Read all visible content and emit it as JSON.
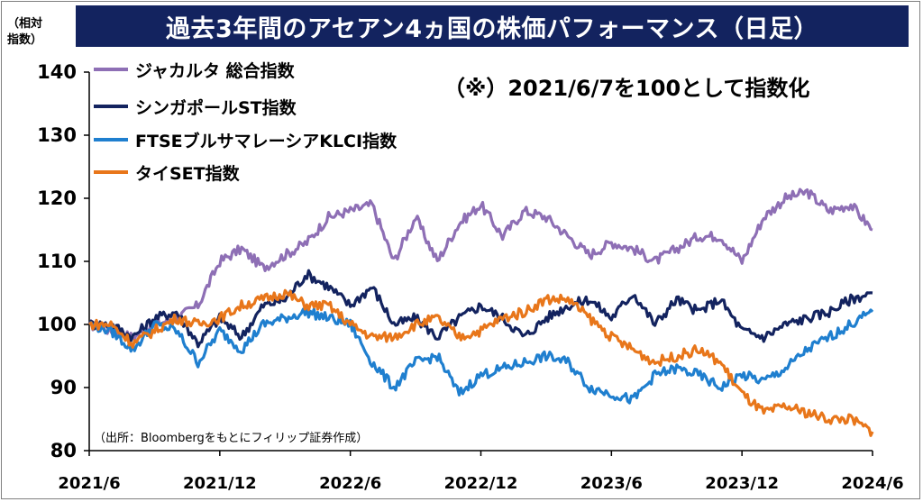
{
  "header": {
    "title": "過去3年間のアセアン4ヵ国の株価パフォーマンス（日足）",
    "unit_line1": "（相対",
    "unit_line2": "指数）",
    "note": "（※）2021/6/7を100として指数化",
    "source": "（出所：Bloombergをもとにフィリップ証券作成）"
  },
  "chart_data": {
    "type": "line",
    "title": "過去3年間のアセアン4ヵ国の株価パフォーマンス（日足）",
    "xlabel": "",
    "ylabel": "（相対指数）",
    "ylim": [
      80,
      140
    ],
    "yticks": [
      "80",
      "90",
      "100",
      "110",
      "120",
      "130",
      "140"
    ],
    "xticks": [
      "2021/6",
      "2021/12",
      "2022/6",
      "2022/12",
      "2023/6",
      "2023/12",
      "2024/6"
    ],
    "xlim": [
      0,
      36
    ],
    "grid": false,
    "legend_position": "top-left",
    "series": [
      {
        "name": "ジャカルタ 総合指数",
        "color": "#8e6fb5",
        "values": [
          [
            0,
            100
          ],
          [
            1,
            99
          ],
          [
            2,
            98
          ],
          [
            3,
            100
          ],
          [
            4,
            101
          ],
          [
            5,
            103
          ],
          [
            6,
            110
          ],
          [
            7,
            112
          ],
          [
            8,
            109
          ],
          [
            9,
            111
          ],
          [
            10,
            113
          ],
          [
            11,
            117
          ],
          [
            12,
            118
          ],
          [
            13,
            119
          ],
          [
            14,
            110
          ],
          [
            15,
            117
          ],
          [
            16,
            110
          ],
          [
            17,
            116
          ],
          [
            18,
            119
          ],
          [
            19,
            114
          ],
          [
            20,
            118
          ],
          [
            21,
            117
          ],
          [
            22,
            114
          ],
          [
            23,
            111
          ],
          [
            24,
            113
          ],
          [
            25,
            112
          ],
          [
            26,
            110
          ],
          [
            27,
            112
          ],
          [
            28,
            114
          ],
          [
            29,
            114
          ],
          [
            30,
            110
          ],
          [
            31,
            117
          ],
          [
            32,
            120
          ],
          [
            33,
            121
          ],
          [
            34,
            118
          ],
          [
            35,
            119
          ],
          [
            36,
            115
          ]
        ]
      },
      {
        "name": "シンガポールST指数",
        "color": "#13235f",
        "values": [
          [
            0,
            100
          ],
          [
            1,
            100
          ],
          [
            2,
            98
          ],
          [
            3,
            101
          ],
          [
            4,
            102
          ],
          [
            5,
            97
          ],
          [
            6,
            101
          ],
          [
            7,
            98
          ],
          [
            8,
            103
          ],
          [
            9,
            104
          ],
          [
            10,
            108
          ],
          [
            11,
            106
          ],
          [
            12,
            103
          ],
          [
            13,
            106
          ],
          [
            14,
            100
          ],
          [
            15,
            101
          ],
          [
            16,
            98
          ],
          [
            17,
            101
          ],
          [
            18,
            103
          ],
          [
            19,
            101
          ],
          [
            20,
            98
          ],
          [
            21,
            101
          ],
          [
            22,
            103
          ],
          [
            23,
            104
          ],
          [
            24,
            101
          ],
          [
            25,
            105
          ],
          [
            26,
            100
          ],
          [
            27,
            104
          ],
          [
            28,
            102
          ],
          [
            29,
            104
          ],
          [
            30,
            99
          ],
          [
            31,
            98
          ],
          [
            32,
            100
          ],
          [
            33,
            101
          ],
          [
            34,
            102
          ],
          [
            35,
            104
          ],
          [
            36,
            105
          ]
        ]
      },
      {
        "name": "FTSEブルサマレーシアKLCI指数",
        "color": "#1f7fcf",
        "values": [
          [
            0,
            100
          ],
          [
            1,
            99
          ],
          [
            2,
            96
          ],
          [
            3,
            100
          ],
          [
            4,
            99
          ],
          [
            5,
            94
          ],
          [
            6,
            99
          ],
          [
            7,
            96
          ],
          [
            8,
            100
          ],
          [
            9,
            101
          ],
          [
            10,
            102
          ],
          [
            11,
            101
          ],
          [
            12,
            100
          ],
          [
            13,
            94
          ],
          [
            14,
            90
          ],
          [
            15,
            94
          ],
          [
            16,
            95
          ],
          [
            17,
            89
          ],
          [
            18,
            92
          ],
          [
            19,
            93
          ],
          [
            20,
            94
          ],
          [
            21,
            95
          ],
          [
            22,
            94
          ],
          [
            23,
            90
          ],
          [
            24,
            89
          ],
          [
            25,
            88
          ],
          [
            26,
            92
          ],
          [
            27,
            93
          ],
          [
            28,
            92
          ],
          [
            29,
            90
          ],
          [
            30,
            92
          ],
          [
            31,
            91
          ],
          [
            32,
            93
          ],
          [
            33,
            96
          ],
          [
            34,
            98
          ],
          [
            35,
            100
          ],
          [
            36,
            102
          ]
        ]
      },
      {
        "name": "タイSET指数",
        "color": "#e8761a",
        "values": [
          [
            0,
            100
          ],
          [
            1,
            100
          ],
          [
            2,
            97
          ],
          [
            3,
            99
          ],
          [
            4,
            101
          ],
          [
            5,
            100
          ],
          [
            6,
            101
          ],
          [
            7,
            103
          ],
          [
            8,
            104
          ],
          [
            9,
            105
          ],
          [
            10,
            103
          ],
          [
            11,
            103
          ],
          [
            12,
            100
          ],
          [
            13,
            98
          ],
          [
            14,
            98
          ],
          [
            15,
            100
          ],
          [
            16,
            101
          ],
          [
            17,
            98
          ],
          [
            18,
            99
          ],
          [
            19,
            101
          ],
          [
            20,
            102
          ],
          [
            21,
            104
          ],
          [
            22,
            104
          ],
          [
            23,
            101
          ],
          [
            24,
            98
          ],
          [
            25,
            96
          ],
          [
            26,
            94
          ],
          [
            27,
            95
          ],
          [
            28,
            96
          ],
          [
            29,
            94
          ],
          [
            30,
            89
          ],
          [
            31,
            86
          ],
          [
            32,
            87
          ],
          [
            33,
            86
          ],
          [
            34,
            85
          ],
          [
            35,
            85
          ],
          [
            36,
            83
          ]
        ]
      }
    ]
  }
}
